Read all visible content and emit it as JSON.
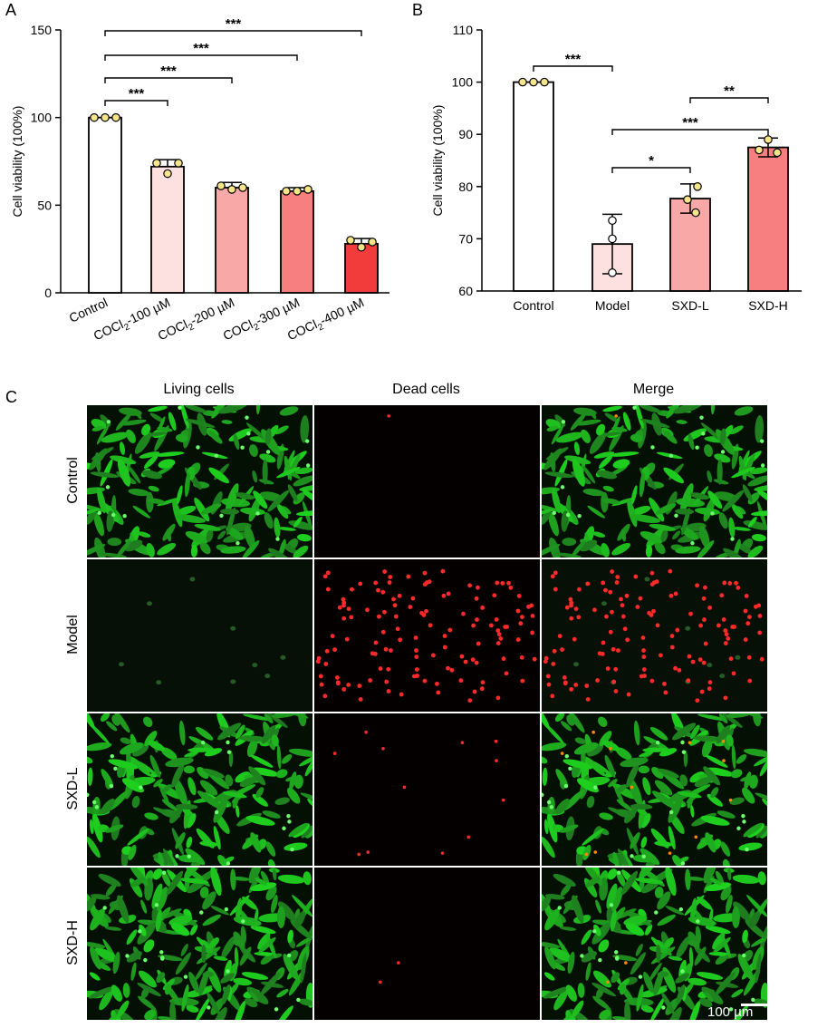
{
  "panels": {
    "a": "A",
    "b": "B",
    "c": "C"
  },
  "colors": {
    "bar_control": "#ffffff",
    "bar_100": "#fde0e0",
    "bar_200": "#f9a8a8",
    "bar_300": "#f77f7f",
    "bar_400": "#f23b3b",
    "bar_model": "#fde0e0",
    "bar_sxdl": "#f9a8a8",
    "bar_sxdh": "#f77f7f",
    "dot_fill": "#f7e58a",
    "living_green": "#2ec82e",
    "dead_red": "#ff2a2a"
  },
  "chart_data": [
    {
      "type": "bar",
      "panel": "A",
      "categories": [
        "Control",
        "COCl2-100 µM",
        "COCl2-200 µM",
        "COCl2-300 µM",
        "COCl2-400 µM"
      ],
      "category_parts": [
        {
          "base": "Control",
          "sub": "",
          "rest": ""
        },
        {
          "base": "COCl",
          "sub": "2",
          "rest": "-100 µM"
        },
        {
          "base": "COCl",
          "sub": "2",
          "rest": "-200 µM"
        },
        {
          "base": "COCl",
          "sub": "2",
          "rest": "-300 µM"
        },
        {
          "base": "COCl",
          "sub": "2",
          "rest": "-400 µM"
        }
      ],
      "values": [
        100,
        72,
        60,
        58,
        28
      ],
      "error": [
        0,
        4,
        3,
        2,
        3
      ],
      "points": [
        [
          100,
          100,
          100
        ],
        [
          74,
          68,
          74
        ],
        [
          61,
          59,
          60
        ],
        [
          58,
          58,
          59
        ],
        [
          30,
          26,
          29
        ]
      ],
      "ylabel": "Cell viability (100%)",
      "ylim": [
        0,
        150
      ],
      "yticks": [
        0,
        50,
        100,
        150
      ],
      "significance": [
        {
          "from": 0,
          "to": 1,
          "label": "***"
        },
        {
          "from": 0,
          "to": 2,
          "label": "***"
        },
        {
          "from": 0,
          "to": 3,
          "label": "***"
        },
        {
          "from": 0,
          "to": 4,
          "label": "***"
        }
      ]
    },
    {
      "type": "bar",
      "panel": "B",
      "categories": [
        "Control",
        "Model",
        "SXD-L",
        "SXD-H"
      ],
      "values": [
        100,
        69,
        77.7,
        87.5
      ],
      "error": [
        0,
        5.7,
        2.8,
        1.8
      ],
      "points": [
        [
          100,
          100,
          100
        ],
        [
          73.5,
          70,
          63.5
        ],
        [
          80,
          77.5,
          75
        ],
        [
          89,
          87,
          86.5
        ]
      ],
      "ylabel": "Cell viability (100%)",
      "ylim": [
        60,
        110
      ],
      "yticks": [
        60,
        70,
        80,
        90,
        100,
        110
      ],
      "significance": [
        {
          "from": 0,
          "to": 1,
          "label": "***"
        },
        {
          "from": 1,
          "to": 2,
          "label": "*"
        },
        {
          "from": 1,
          "to": 3,
          "label": "***"
        },
        {
          "from": 2,
          "to": 3,
          "label": "**"
        }
      ]
    }
  ],
  "micrographs": {
    "columns": [
      "Living cells",
      "Dead cells",
      "Merge"
    ],
    "rows": [
      "Control",
      "Model",
      "SXD-L",
      "SXD-H"
    ],
    "scale_bar": "100 µm"
  }
}
